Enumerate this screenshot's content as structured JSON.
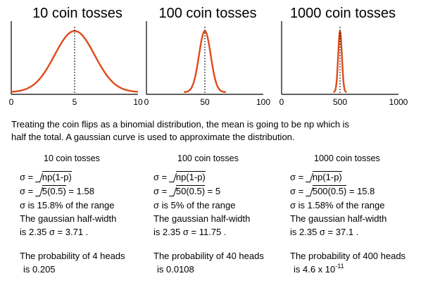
{
  "chart_data": [
    {
      "type": "line",
      "title": "10 coin tosses",
      "n": 10,
      "mean": 5,
      "sigma": 1.58,
      "xlim": [
        0,
        10
      ],
      "xticks": [
        "0",
        "5",
        "10"
      ],
      "curve_color": "#e04a1a",
      "mean_line": "dotted"
    },
    {
      "type": "line",
      "title": "100 coin tosses",
      "n": 100,
      "mean": 50,
      "sigma": 5,
      "xlim": [
        0,
        100
      ],
      "xticks": [
        "0",
        "50",
        "100"
      ],
      "curve_color": "#e04a1a",
      "mean_line": "dotted"
    },
    {
      "type": "line",
      "title": "1000 coin tosses",
      "n": 1000,
      "mean": 500,
      "sigma": 15.8,
      "xlim": [
        0,
        1000
      ],
      "xticks": [
        "0",
        "500",
        "1000"
      ],
      "curve_color": "#e04a1a",
      "mean_line": "dotted"
    }
  ],
  "caption": {
    "line1": "Treating the coin flips as a binomial distribution, the mean is going to be np which is",
    "line2": "half the total. A gaussian curve is used to approximate the distribution."
  },
  "columns": [
    {
      "heading": "10 coin tosses",
      "formula_prefix": "σ = ",
      "sqrt_general": "np(1-p)",
      "sqrt_numeric": "5(0.5)",
      "sigma_result": " = 1.58",
      "range_text": "σ is 15.8% of the range",
      "halfwidth_line1": "The gaussian half-width",
      "halfwidth_line2": "is 2.35 σ = 3.71 .",
      "prob_line1": "The probability of 4 heads",
      "prob_base": "is 0.205",
      "prob_exp": ""
    },
    {
      "heading": "100 coin tosses",
      "formula_prefix": "σ = ",
      "sqrt_general": "np(1-p)",
      "sqrt_numeric": "50(0.5)",
      "sigma_result": " = 5",
      "range_text": "σ is 5% of the range",
      "halfwidth_line1": "The gaussian half-width",
      "halfwidth_line2": "is 2.35 σ = 11.75 .",
      "prob_line1": "The probability of 40 heads",
      "prob_base": "is 0.0108",
      "prob_exp": ""
    },
    {
      "heading": "1000 coin tosses",
      "formula_prefix": "σ = ",
      "sqrt_general": "np(1-p)",
      "sqrt_numeric": "500(0.5)",
      "sigma_result": " = 15.8",
      "range_text": "σ is 1.58% of the range",
      "halfwidth_line1": "The gaussian half-width",
      "halfwidth_line2": "is 2.35 σ = 37.1 .",
      "prob_line1": "The probability of 400 heads",
      "prob_base": "is 4.6 x 10",
      "prob_exp": "-11"
    }
  ]
}
